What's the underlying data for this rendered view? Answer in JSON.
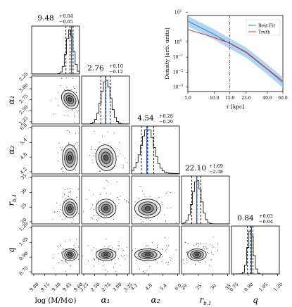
{
  "chart_data": [
    {
      "type": "corner",
      "parameters": [
        {
          "key": "logM",
          "label": "log (M/M⊙)",
          "median": 9.48,
          "plus": "+0.04",
          "minus": "−0.05",
          "title": "9.48",
          "range": [
            9.0,
            9.6
          ],
          "ticks": [
            "9.00",
            "9.15",
            "9.30",
            "9.45",
            "9.60"
          ],
          "truth": 9.5
        },
        {
          "key": "alpha1",
          "label": "α₁",
          "median": 2.76,
          "plus": "+0.10",
          "minus": "−0.12",
          "title": "2.76",
          "range": [
            2.2,
            3.3
          ],
          "ticks": [
            "2.25",
            "2.50",
            "2.75",
            "3.00",
            "3.25"
          ],
          "truth": 2.75
        },
        {
          "key": "alpha2",
          "label": "α₂",
          "median": 4.54,
          "plus": "+0.28",
          "minus": "−0.29",
          "title": "4.54",
          "range": [
            3.8,
            6.0
          ],
          "ticks": [
            "4.2",
            "4.8",
            "5.4",
            "6.0"
          ],
          "ticks_left": [
            "4.2",
            "4.8",
            "5.4",
            "6.0"
          ],
          "truth": 4.5
        },
        {
          "key": "rb1",
          "label": "r_{b,1}",
          "median": 22.1,
          "plus": "+1.69",
          "minus": "−2.38",
          "title": "22.10",
          "range": [
            15,
            37
          ],
          "ticks": [
            "20",
            "25",
            "30",
            "35"
          ],
          "truth": 22
        },
        {
          "key": "q",
          "label": "q",
          "median": 0.84,
          "plus": "+0.03",
          "minus": "−0.04",
          "title": "0.84",
          "range": [
            0.6,
            1.2
          ],
          "ticks": [
            "0.75",
            "0.90",
            "1.05",
            "1.20"
          ],
          "truth": 0.85
        }
      ],
      "left_ticks": {
        "alpha1": [
          "2.25",
          "2.50",
          "2.75",
          "3.00",
          "3.25"
        ],
        "alpha2": [
          "4.2",
          "4.8",
          "5.4",
          "6.0"
        ],
        "rb1": [
          "20",
          "25",
          "30",
          "35"
        ],
        "q": [
          "0.75",
          "0.90",
          "1.05",
          "1.20"
        ]
      }
    },
    {
      "type": "line",
      "xscale": "log",
      "yscale": "log",
      "xlabel": "r [kpc]",
      "ylabel": "Density [arb. units]",
      "x_ticks": [
        5.0,
        10.0,
        15.0,
        23.0,
        40.0,
        60.0
      ],
      "x_tick_labels": [
        "5.0",
        "10.0",
        "15.0",
        "23.0",
        "40.0",
        "60.0"
      ],
      "y_ticks_exp": [
        2,
        0,
        -1,
        -2,
        -3
      ],
      "xlim": [
        5,
        60
      ],
      "ylim": [
        0.0005,
        60
      ],
      "vline_x": 15.0,
      "legend": "top-right",
      "series": [
        {
          "name": "Best Fit",
          "color": "#3b78c9",
          "x": [
            5,
            10,
            15,
            23,
            40,
            60
          ],
          "y": [
            25,
            3.2,
            0.8,
            0.2,
            0.015,
            0.002
          ]
        },
        {
          "name": "Truth",
          "color": "#d9342b",
          "x": [
            5,
            10,
            15,
            23,
            40,
            60
          ],
          "y": [
            7,
            2.0,
            0.85,
            0.22,
            0.016,
            0.0025
          ]
        }
      ]
    }
  ],
  "colors": {
    "axis": "#000000",
    "truth_line": "#1a5bd6",
    "contour": "#222222",
    "band": "#8fc4ee"
  }
}
